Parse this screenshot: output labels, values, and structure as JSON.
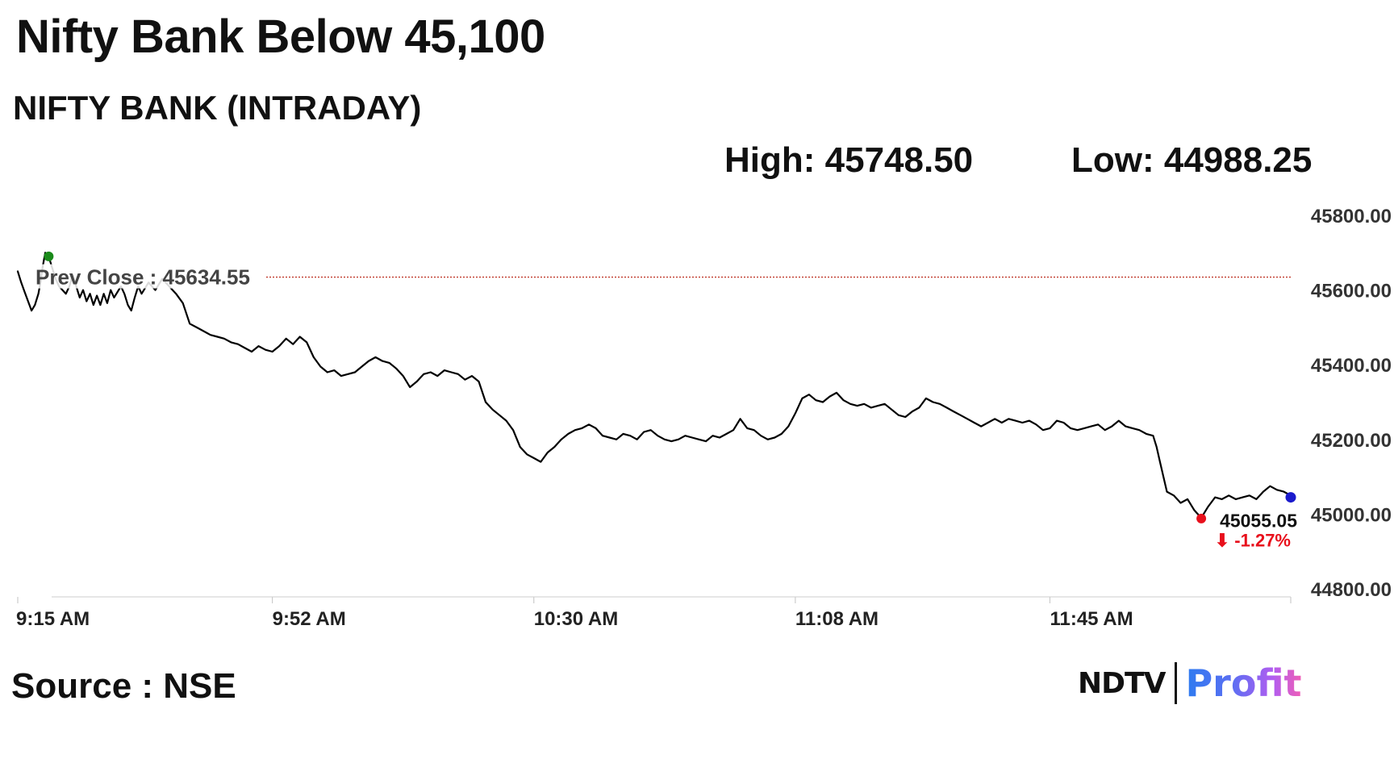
{
  "header": {
    "headline": "Nifty Bank Below 45,100",
    "subtitle": "NIFTY BANK (INTRADAY)",
    "high_text": "High: 45748.50",
    "low_text": "Low: 44988.25"
  },
  "footer": {
    "source": "Source : NSE",
    "logo_ndtv": "NDTV",
    "logo_profit": "Profit"
  },
  "colors": {
    "line": "#000000",
    "prev_close_line": "#c0392b",
    "open_marker": "#1a8a1a",
    "low_marker": "#e8101c",
    "last_marker": "#1a1acc",
    "change_text": "#e8101c"
  },
  "chart_data": {
    "type": "line",
    "title": "NIFTY BANK (INTRADAY)",
    "xlabel": "",
    "ylabel": "",
    "y_ticks": [
      45800,
      45600,
      45400,
      45200,
      45000,
      44800
    ],
    "y_tick_labels": [
      "45800.00",
      "45600.00",
      "45400.00",
      "45200.00",
      "45000.00",
      "44800.00"
    ],
    "ylim": [
      44780,
      45830
    ],
    "x_tick_labels": [
      "9:15 AM",
      "9:52 AM",
      "10:30 AM",
      "11:08 AM",
      "11:45 AM"
    ],
    "x_tick_minutes": [
      555,
      592,
      630,
      668,
      705
    ],
    "xlim_minutes": [
      555,
      740
    ],
    "prev_close": 45634.55,
    "prev_close_label": "Prev Close : 45634.55",
    "high": 45748.5,
    "low": 44988.25,
    "last": 45055.05,
    "last_label": "45055.05",
    "change_label": "⬇ -1.27%",
    "open_marker_minute": 559.5,
    "open_marker_value": 45690,
    "low_marker_minute": 727,
    "low_marker_value": 44988.25,
    "last_marker_minute": 740,
    "last_marker_value": 45045,
    "series": [
      {
        "points": [
          [
            555,
            45650
          ],
          [
            555.5,
            45620
          ],
          [
            556,
            45595
          ],
          [
            556.5,
            45570
          ],
          [
            557,
            45545
          ],
          [
            557.5,
            45560
          ],
          [
            558,
            45590
          ],
          [
            558.3,
            45620
          ],
          [
            558.6,
            45660
          ],
          [
            559,
            45700
          ],
          [
            559.5,
            45690
          ],
          [
            560,
            45660
          ],
          [
            560.5,
            45630
          ],
          [
            561,
            45610
          ],
          [
            562,
            45590
          ],
          [
            562.5,
            45610
          ],
          [
            563,
            45640
          ],
          [
            563.5,
            45610
          ],
          [
            564,
            45580
          ],
          [
            564.5,
            45600
          ],
          [
            565,
            45570
          ],
          [
            565.5,
            45590
          ],
          [
            566,
            45560
          ],
          [
            566.5,
            45585
          ],
          [
            567,
            45560
          ],
          [
            567.5,
            45590
          ],
          [
            568,
            45565
          ],
          [
            568.5,
            45600
          ],
          [
            569,
            45580
          ],
          [
            570,
            45610
          ],
          [
            570.5,
            45590
          ],
          [
            571,
            45560
          ],
          [
            571.5,
            45545
          ],
          [
            572,
            45580
          ],
          [
            572.5,
            45610
          ],
          [
            573,
            45590
          ],
          [
            574,
            45620
          ],
          [
            575,
            45600
          ],
          [
            576,
            45630
          ],
          [
            577,
            45610
          ],
          [
            578,
            45590
          ],
          [
            579,
            45565
          ],
          [
            580,
            45510
          ],
          [
            581,
            45500
          ],
          [
            582,
            45490
          ],
          [
            583,
            45480
          ],
          [
            584,
            45475
          ],
          [
            585,
            45470
          ],
          [
            586,
            45460
          ],
          [
            587,
            45455
          ],
          [
            588,
            45445
          ],
          [
            589,
            45435
          ],
          [
            590,
            45450
          ],
          [
            591,
            45440
          ],
          [
            592,
            45435
          ],
          [
            593,
            45450
          ],
          [
            594,
            45470
          ],
          [
            595,
            45455
          ],
          [
            596,
            45475
          ],
          [
            597,
            45460
          ],
          [
            598,
            45420
          ],
          [
            599,
            45395
          ],
          [
            600,
            45380
          ],
          [
            601,
            45385
          ],
          [
            602,
            45370
          ],
          [
            603,
            45375
          ],
          [
            604,
            45380
          ],
          [
            605,
            45395
          ],
          [
            606,
            45410
          ],
          [
            607,
            45420
          ],
          [
            608,
            45410
          ],
          [
            609,
            45405
          ],
          [
            610,
            45390
          ],
          [
            611,
            45370
          ],
          [
            612,
            45340
          ],
          [
            613,
            45355
          ],
          [
            614,
            45375
          ],
          [
            615,
            45380
          ],
          [
            616,
            45370
          ],
          [
            617,
            45385
          ],
          [
            618,
            45380
          ],
          [
            619,
            45375
          ],
          [
            620,
            45360
          ],
          [
            621,
            45370
          ],
          [
            622,
            45355
          ],
          [
            623,
            45300
          ],
          [
            624,
            45280
          ],
          [
            625,
            45265
          ],
          [
            626,
            45250
          ],
          [
            627,
            45225
          ],
          [
            628,
            45180
          ],
          [
            629,
            45160
          ],
          [
            630,
            45150
          ],
          [
            631,
            45140
          ],
          [
            632,
            45165
          ],
          [
            633,
            45180
          ],
          [
            634,
            45200
          ],
          [
            635,
            45215
          ],
          [
            636,
            45225
          ],
          [
            637,
            45230
          ],
          [
            638,
            45240
          ],
          [
            639,
            45230
          ],
          [
            640,
            45210
          ],
          [
            641,
            45205
          ],
          [
            642,
            45200
          ],
          [
            643,
            45215
          ],
          [
            644,
            45210
          ],
          [
            645,
            45200
          ],
          [
            646,
            45220
          ],
          [
            647,
            45225
          ],
          [
            648,
            45210
          ],
          [
            649,
            45200
          ],
          [
            650,
            45195
          ],
          [
            651,
            45200
          ],
          [
            652,
            45210
          ],
          [
            653,
            45205
          ],
          [
            654,
            45200
          ],
          [
            655,
            45195
          ],
          [
            656,
            45210
          ],
          [
            657,
            45205
          ],
          [
            658,
            45215
          ],
          [
            659,
            45225
          ],
          [
            660,
            45255
          ],
          [
            661,
            45230
          ],
          [
            662,
            45225
          ],
          [
            663,
            45210
          ],
          [
            664,
            45200
          ],
          [
            665,
            45205
          ],
          [
            666,
            45215
          ],
          [
            667,
            45235
          ],
          [
            668,
            45270
          ],
          [
            669,
            45310
          ],
          [
            670,
            45320
          ],
          [
            671,
            45305
          ],
          [
            672,
            45300
          ],
          [
            673,
            45315
          ],
          [
            674,
            45325
          ],
          [
            675,
            45305
          ],
          [
            676,
            45295
          ],
          [
            677,
            45290
          ],
          [
            678,
            45295
          ],
          [
            679,
            45285
          ],
          [
            680,
            45290
          ],
          [
            681,
            45295
          ],
          [
            682,
            45280
          ],
          [
            683,
            45265
          ],
          [
            684,
            45260
          ],
          [
            685,
            45275
          ],
          [
            686,
            45285
          ],
          [
            687,
            45310
          ],
          [
            688,
            45300
          ],
          [
            689,
            45295
          ],
          [
            690,
            45285
          ],
          [
            691,
            45275
          ],
          [
            692,
            45265
          ],
          [
            693,
            45255
          ],
          [
            694,
            45245
          ],
          [
            695,
            45235
          ],
          [
            696,
            45245
          ],
          [
            697,
            45255
          ],
          [
            698,
            45245
          ],
          [
            699,
            45255
          ],
          [
            700,
            45250
          ],
          [
            701,
            45245
          ],
          [
            702,
            45250
          ],
          [
            703,
            45240
          ],
          [
            704,
            45225
          ],
          [
            705,
            45230
          ],
          [
            706,
            45250
          ],
          [
            707,
            45245
          ],
          [
            708,
            45230
          ],
          [
            709,
            45225
          ],
          [
            710,
            45230
          ],
          [
            711,
            45235
          ],
          [
            712,
            45240
          ],
          [
            713,
            45225
          ],
          [
            714,
            45235
          ],
          [
            715,
            45250
          ],
          [
            716,
            45235
          ],
          [
            717,
            45230
          ],
          [
            718,
            45225
          ],
          [
            719,
            45215
          ],
          [
            720,
            45210
          ],
          [
            720.5,
            45180
          ],
          [
            721,
            45140
          ],
          [
            721.5,
            45100
          ],
          [
            722,
            45060
          ],
          [
            723,
            45050
          ],
          [
            724,
            45030
          ],
          [
            725,
            45040
          ],
          [
            726,
            45010
          ],
          [
            727,
            44990
          ],
          [
            728,
            45020
          ],
          [
            729,
            45045
          ],
          [
            730,
            45040
          ],
          [
            731,
            45050
          ],
          [
            732,
            45040
          ],
          [
            733,
            45045
          ],
          [
            734,
            45050
          ],
          [
            735,
            45040
          ],
          [
            736,
            45060
          ],
          [
            737,
            45075
          ],
          [
            738,
            45065
          ],
          [
            739,
            45060
          ],
          [
            740,
            45050
          ]
        ]
      }
    ]
  }
}
